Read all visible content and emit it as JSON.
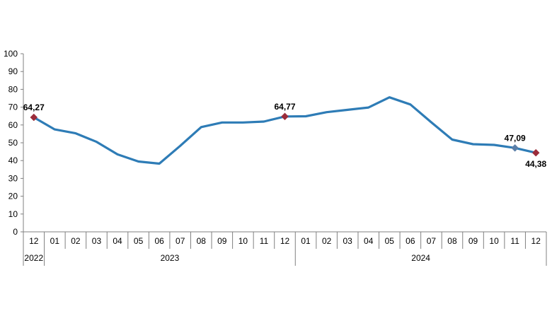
{
  "chart_data": {
    "type": "line",
    "title": "",
    "xlabel": "",
    "ylabel": "",
    "ylim": [
      0,
      100
    ],
    "yticks": [
      "0",
      "10",
      "20",
      "30",
      "40",
      "50",
      "60",
      "70",
      "80",
      "90",
      "100"
    ],
    "grid": false,
    "legend": "none",
    "colors": {
      "line": "#2e7cb6",
      "marker_red": "#9b2c3a",
      "marker_blue": "#5a7fa8",
      "axis": "#808080"
    },
    "categories": [
      "12",
      "01",
      "02",
      "03",
      "04",
      "05",
      "06",
      "07",
      "08",
      "09",
      "10",
      "11",
      "12",
      "01",
      "02",
      "03",
      "04",
      "05",
      "06",
      "07",
      "08",
      "09",
      "10",
      "11",
      "12"
    ],
    "year_groups": [
      {
        "label": "2022",
        "start": 0,
        "end": 0
      },
      {
        "label": "2023",
        "start": 1,
        "end": 12
      },
      {
        "label": "2024",
        "start": 13,
        "end": 24
      }
    ],
    "series": [
      {
        "values": [
          64.27,
          57.5,
          55.3,
          50.5,
          43.5,
          39.5,
          38.3,
          48.3,
          58.8,
          61.4,
          61.4,
          61.9,
          64.77,
          64.9,
          67.2,
          68.5,
          69.8,
          75.5,
          71.5,
          61.5,
          51.8,
          49.2,
          48.8,
          47.09,
          44.38
        ]
      }
    ],
    "annotations": [
      {
        "index": 0,
        "label": "64,27",
        "marker": "red"
      },
      {
        "index": 12,
        "label": "64,77",
        "marker": "red"
      },
      {
        "index": 23,
        "label": "47,09",
        "marker": "blue"
      },
      {
        "index": 24,
        "label": "44,38",
        "marker": "red"
      }
    ]
  }
}
